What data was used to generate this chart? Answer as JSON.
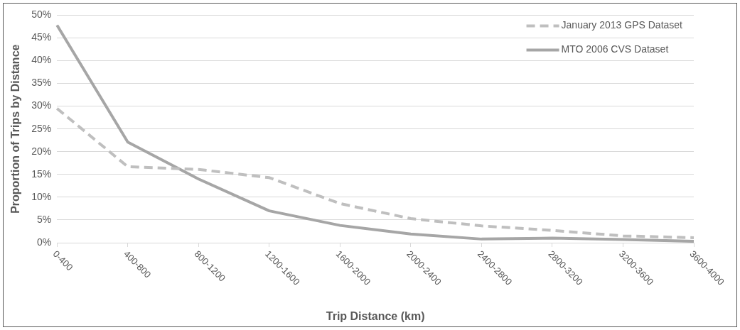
{
  "chart_data": {
    "type": "line",
    "xlabel": "Trip Distance (km)",
    "ylabel": "Proportion of Trips by Distance",
    "categories": [
      "0-400",
      "400-800",
      "800-1200",
      "1200-1600",
      "1600-2000",
      "2000-2400",
      "2400-2800",
      "2800-3200",
      "3200-3600",
      "3600-4000"
    ],
    "series": [
      {
        "name": "January 2013 GPS Dataset",
        "color": "#bfbfbf",
        "line_style": "dashed",
        "values": [
          29.5,
          16.7,
          16.1,
          14.3,
          8.6,
          5.3,
          3.7,
          2.7,
          1.5,
          1.1
        ]
      },
      {
        "name": "MTO 2006 CVS Dataset",
        "color": "#a6a6a6",
        "line_style": "solid",
        "values": [
          47.8,
          22.1,
          14.0,
          7.0,
          3.8,
          1.9,
          0.8,
          1.0,
          0.7,
          0.3
        ]
      }
    ],
    "ylim": [
      0,
      50
    ],
    "yticks": [
      {
        "value": 0,
        "label": "0%"
      },
      {
        "value": 5,
        "label": "5%"
      },
      {
        "value": 10,
        "label": "10%"
      },
      {
        "value": 15,
        "label": "15%"
      },
      {
        "value": 20,
        "label": "20%"
      },
      {
        "value": 25,
        "label": "25%"
      },
      {
        "value": 30,
        "label": "30%"
      },
      {
        "value": 35,
        "label": "35%"
      },
      {
        "value": 40,
        "label": "40%"
      },
      {
        "value": 45,
        "label": "45%"
      },
      {
        "value": 50,
        "label": "50%"
      }
    ],
    "grid": "y",
    "legend": "top right",
    "marker": "none"
  }
}
